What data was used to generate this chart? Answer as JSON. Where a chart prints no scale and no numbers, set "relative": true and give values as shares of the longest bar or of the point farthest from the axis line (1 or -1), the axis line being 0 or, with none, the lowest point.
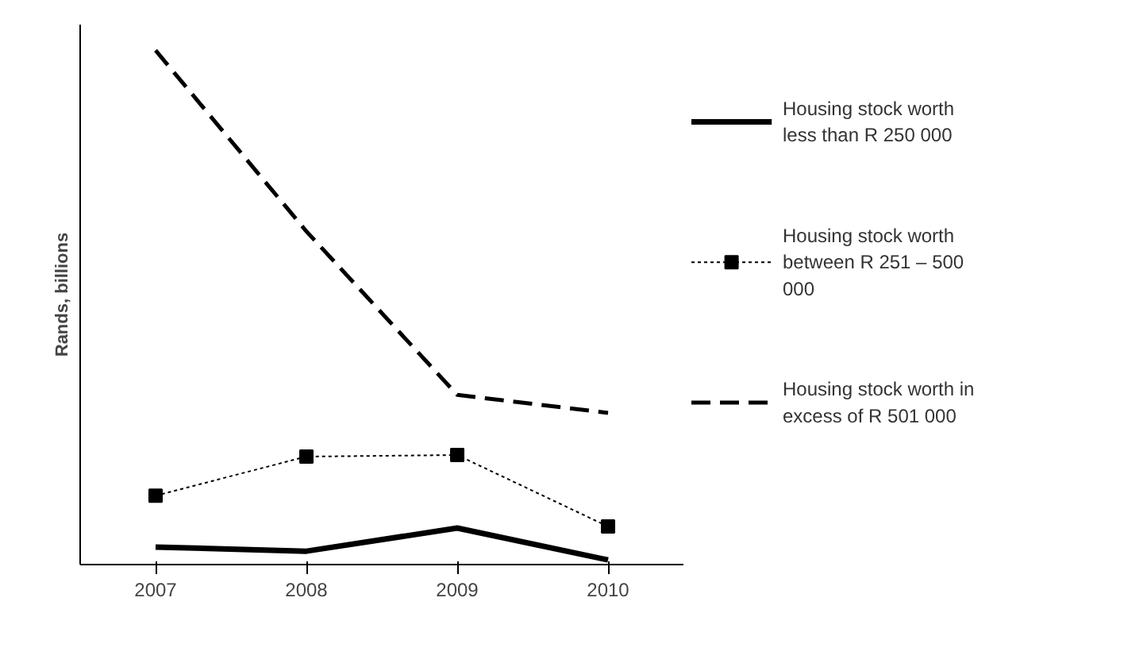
{
  "chart_data": {
    "type": "line",
    "relative": true,
    "ylabel": "Rands, billions",
    "categories": [
      "2007",
      "2008",
      "2009",
      "2010"
    ],
    "legend": "right",
    "grid": false,
    "series": [
      {
        "name": "Housing stock worth less than R 250 000",
        "color": "#000000",
        "line_style": "solid",
        "marker": "none",
        "values": [
          0.034,
          0.026,
          0.071,
          0.009
        ]
      },
      {
        "name": "Housing stock worth between R 251 – 500 000",
        "color": "#000000",
        "line_style": "dotted",
        "marker": "square",
        "values": [
          0.134,
          0.21,
          0.213,
          0.074
        ]
      },
      {
        "name": "Housing stock worth in excess of R 501 000",
        "color": "#000000",
        "line_style": "dashed",
        "marker": "none",
        "values": [
          1,
          0.648,
          0.33,
          0.295
        ]
      }
    ]
  }
}
